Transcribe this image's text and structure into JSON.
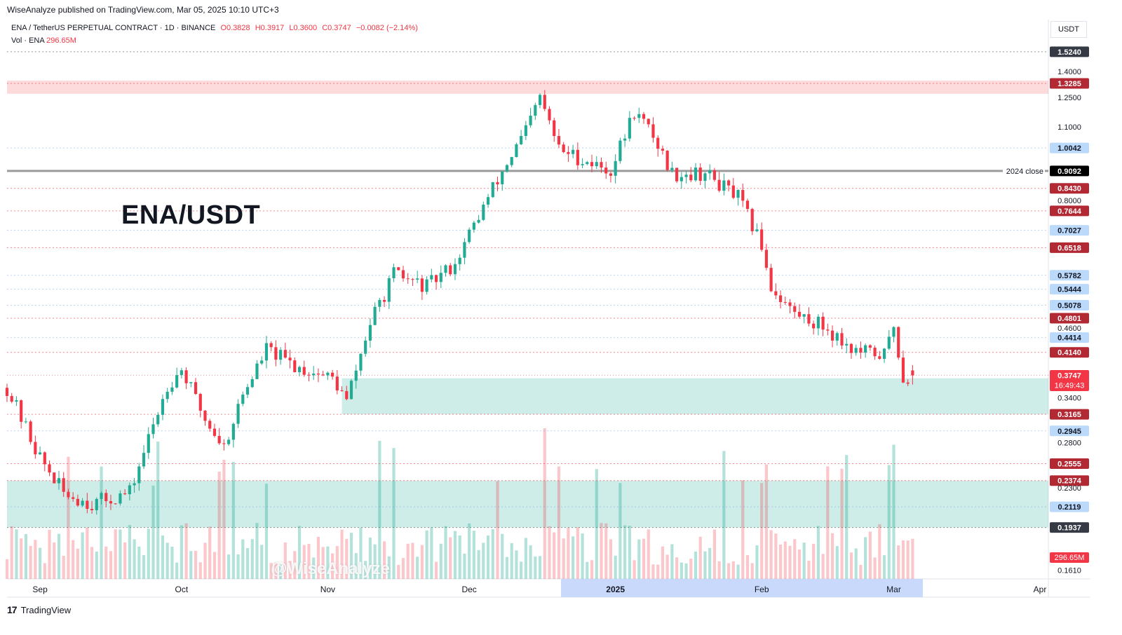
{
  "header": {
    "published": "WiseAnalyze published on TradingView.com, Mar 05, 2025 10:10 UTC+3",
    "symbol": "ENA / TetherUS PERPETUAL CONTRACT · 1D · BINANCE",
    "open": "O0.3828",
    "high": "H0.3917",
    "low": "L0.3600",
    "close": "C0.3747",
    "change": "−0.0082 (−2.14%)",
    "vol_label": "Vol · ENA",
    "vol_value": "296.65M",
    "currency": "USDT"
  },
  "title_overlay": "ENA/USDT",
  "watermark": "@WiseAnalyze",
  "footer": {
    "logo": "17",
    "brand": "TradingView"
  },
  "colors": {
    "up": "#22ab94",
    "down": "#f23645",
    "grid": "#f0f3fa",
    "axis_text": "#131722",
    "blue_label": "#bbd9fb"
  },
  "chart_data": {
    "type": "candlestick",
    "ylim": [
      0.155,
      1.58
    ],
    "y_scale": "log",
    "x_tick_labels": [
      "Sep",
      "Oct",
      "Nov",
      "Dec",
      "2025",
      "Feb",
      "Mar",
      "Apr"
    ],
    "y_tick_labels": [
      "1.4000",
      "1.2500",
      "1.1000",
      "0.8000",
      "0.4600",
      "0.3400",
      "0.2800",
      "0.2300",
      "0.1610"
    ],
    "price_levels": [
      {
        "value": 1.524,
        "label": "1.5240",
        "style": "gray-box"
      },
      {
        "value": 1.3285,
        "label": "1.3285",
        "style": "red-box"
      },
      {
        "value": 1.0042,
        "label": "1.0042",
        "style": "blue-box"
      },
      {
        "value": 0.9092,
        "label": "0.9092",
        "style": "black-box",
        "note": "2024 close"
      },
      {
        "value": 0.843,
        "label": "0.8430",
        "style": "red-box"
      },
      {
        "value": 0.7644,
        "label": "0.7644",
        "style": "red-box"
      },
      {
        "value": 0.7027,
        "label": "0.7027",
        "style": "blue-box"
      },
      {
        "value": 0.6518,
        "label": "0.6518",
        "style": "red-box"
      },
      {
        "value": 0.5782,
        "label": "0.5782",
        "style": "blue-box"
      },
      {
        "value": 0.5444,
        "label": "0.5444",
        "style": "blue-box"
      },
      {
        "value": 0.5078,
        "label": "0.5078",
        "style": "blue-box"
      },
      {
        "value": 0.4801,
        "label": "0.4801",
        "style": "red-box"
      },
      {
        "value": 0.4414,
        "label": "0.4414",
        "style": "blue-box"
      },
      {
        "value": 0.414,
        "label": "0.4140",
        "style": "red-box"
      },
      {
        "value": 0.3747,
        "label": "0.3747",
        "style": "current",
        "countdown": "16:49:43"
      },
      {
        "value": 0.3165,
        "label": "0.3165",
        "style": "red-box"
      },
      {
        "value": 0.2945,
        "label": "0.2945",
        "style": "blue-box"
      },
      {
        "value": 0.2555,
        "label": "0.2555",
        "style": "red-box"
      },
      {
        "value": 0.2374,
        "label": "0.2374",
        "style": "red-box"
      },
      {
        "value": 0.2119,
        "label": "0.2119",
        "style": "blue-box"
      },
      {
        "value": 0.1937,
        "label": "0.1937",
        "style": "gray-box"
      }
    ],
    "volume_last": "296.65M",
    "zones": [
      {
        "from": 1.27,
        "to": 1.345,
        "color": "red"
      },
      {
        "from": 0.3165,
        "to": 0.37,
        "color": "green"
      },
      {
        "from": 0.1937,
        "to": 0.2374,
        "color": "green"
      }
    ],
    "anchors": [
      [
        "2024-08-25",
        0.355
      ],
      [
        "2024-09-01",
        0.262
      ],
      [
        "2024-09-06",
        0.225
      ],
      [
        "2024-09-12",
        0.215
      ],
      [
        "2024-09-20",
        0.225
      ],
      [
        "2024-09-28",
        0.36
      ],
      [
        "2024-10-01",
        0.385
      ],
      [
        "2024-10-06",
        0.31
      ],
      [
        "2024-10-10",
        0.275
      ],
      [
        "2024-10-14",
        0.345
      ],
      [
        "2024-10-19",
        0.42
      ],
      [
        "2024-10-25",
        0.39
      ],
      [
        "2024-11-02",
        0.37
      ],
      [
        "2024-11-05",
        0.335
      ],
      [
        "2024-11-10",
        0.47
      ],
      [
        "2024-11-15",
        0.58
      ],
      [
        "2024-11-22",
        0.55
      ],
      [
        "2024-11-28",
        0.61
      ],
      [
        "2024-12-04",
        0.78
      ],
      [
        "2024-12-09",
        0.94
      ],
      [
        "2024-12-13",
        1.08
      ],
      [
        "2024-12-16",
        1.25
      ],
      [
        "2024-12-20",
        1.0
      ],
      [
        "2024-12-27",
        0.94
      ],
      [
        "2024-12-31",
        0.91
      ],
      [
        "2025-01-05",
        1.18
      ],
      [
        "2025-01-09",
        1.06
      ],
      [
        "2025-01-13",
        0.9
      ],
      [
        "2025-01-20",
        0.9
      ],
      [
        "2025-01-27",
        0.81
      ],
      [
        "2025-02-01",
        0.66
      ],
      [
        "2025-02-03",
        0.55
      ],
      [
        "2025-02-08",
        0.49
      ],
      [
        "2025-02-14",
        0.465
      ],
      [
        "2025-02-21",
        0.415
      ],
      [
        "2025-02-27",
        0.41
      ],
      [
        "2025-03-01",
        0.465
      ],
      [
        "2025-03-03",
        0.37
      ],
      [
        "2025-03-05",
        0.3747
      ]
    ]
  }
}
